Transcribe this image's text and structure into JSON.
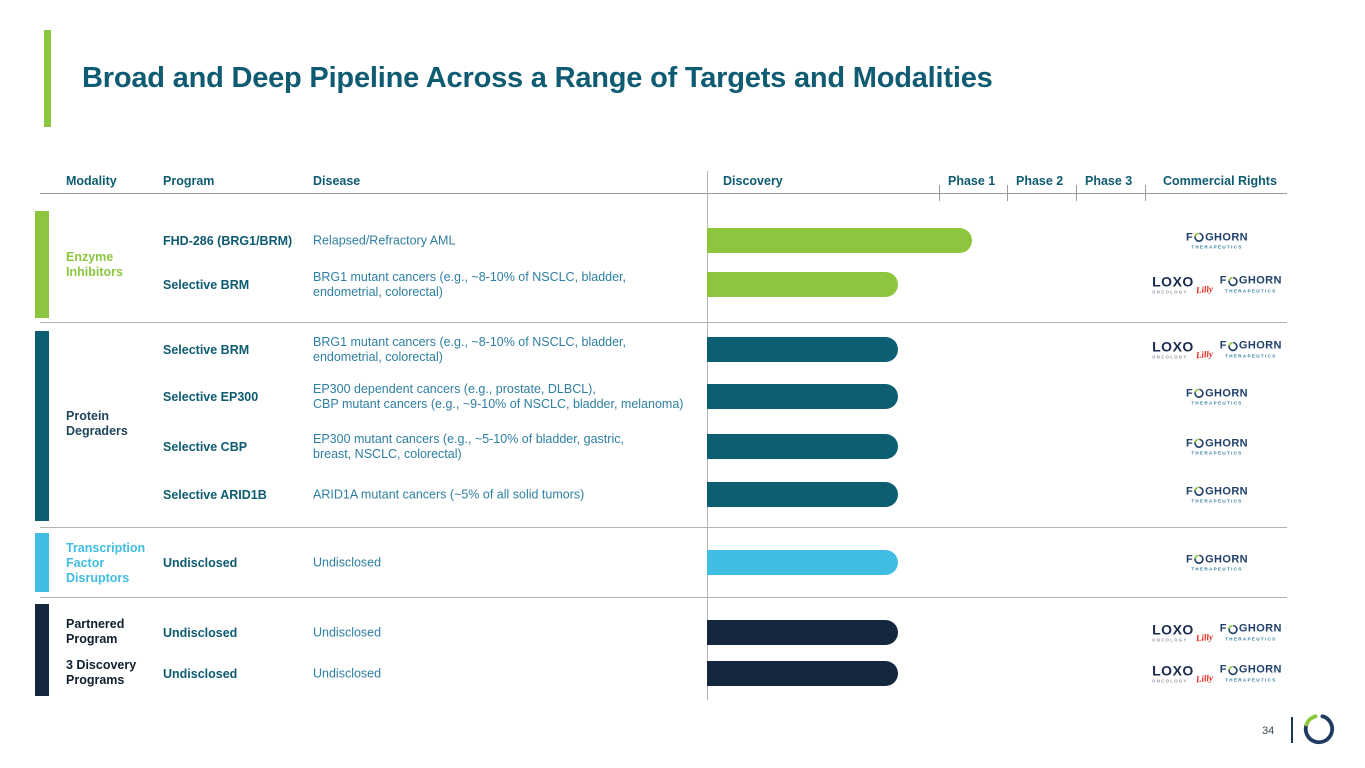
{
  "slide": {
    "title": "Broad and Deep Pipeline Across a Range of Targets and Modalities",
    "page_number": "34"
  },
  "columns": {
    "modality": "Modality",
    "program": "Program",
    "disease": "Disease",
    "discovery": "Discovery",
    "phase1": "Phase 1",
    "phase2": "Phase 2",
    "phase3": "Phase 3",
    "commercial_rights": "Commercial Rights"
  },
  "modalities": [
    {
      "label": "Enzyme Inhibitors",
      "color": "#8CC63F"
    },
    {
      "label": "Protein Degraders",
      "color": "#0C5F72"
    },
    {
      "label": "Transcription Factor Disruptors",
      "color": "#41BDE4"
    },
    {
      "label": "Partnered Program",
      "color": "#14273E"
    },
    {
      "label": "3 Discovery Programs",
      "color": "#14273E"
    }
  ],
  "rows": [
    {
      "modality": "Enzyme Inhibitors",
      "program": "FHD-286 (BRG1/BRM)",
      "disease": "Relapsed/Refractory AML",
      "stage_reached": "Phase 1 (partial)",
      "bar_color": "#8CC63F",
      "partners": "Foghorn"
    },
    {
      "modality": "Enzyme Inhibitors",
      "program": "Selective BRM",
      "disease": "BRG1 mutant cancers (e.g., ~8-10% of NSCLC, bladder,\nendometrial, colorectal)",
      "stage_reached": "Discovery",
      "bar_color": "#8CC63F",
      "partners": "Loxo Oncology + Foghorn"
    },
    {
      "modality": "Protein Degraders",
      "program": "Selective BRM",
      "disease": "BRG1 mutant cancers (e.g., ~8-10% of NSCLC, bladder,\nendometrial, colorectal)",
      "stage_reached": "Discovery",
      "bar_color": "#0C5F72",
      "partners": "Loxo Oncology + Foghorn"
    },
    {
      "modality": "Protein Degraders",
      "program": "Selective EP300",
      "disease": "EP300 dependent cancers (e.g., prostate, DLBCL),\nCBP mutant cancers (e.g., ~9-10% of NSCLC, bladder, melanoma)",
      "stage_reached": "Discovery",
      "bar_color": "#0C5F72",
      "partners": "Foghorn"
    },
    {
      "modality": "Protein Degraders",
      "program": "Selective CBP",
      "disease": "EP300 mutant cancers (e.g., ~5-10% of bladder, gastric,\nbreast, NSCLC, colorectal)",
      "stage_reached": "Discovery",
      "bar_color": "#0C5F72",
      "partners": "Foghorn"
    },
    {
      "modality": "Protein Degraders",
      "program": "Selective ARID1B",
      "disease": "ARID1A mutant cancers (~5% of all solid tumors)",
      "stage_reached": "Discovery",
      "bar_color": "#0C5F72",
      "partners": "Foghorn"
    },
    {
      "modality": "Transcription Factor Disruptors",
      "program": "Undisclosed",
      "disease": "Undisclosed",
      "stage_reached": "Discovery",
      "bar_color": "#41BDE4",
      "partners": "Foghorn"
    },
    {
      "modality": "Partnered Program",
      "program": "Undisclosed",
      "disease": "Undisclosed",
      "stage_reached": "Discovery",
      "bar_color": "#14273E",
      "partners": "Loxo Oncology + Foghorn"
    },
    {
      "modality": "3 Discovery Programs",
      "program": "Undisclosed",
      "disease": "Undisclosed",
      "stage_reached": "Discovery",
      "bar_color": "#14273E",
      "partners": "Loxo Oncology + Foghorn"
    }
  ],
  "logos": {
    "foghorn_first_letter": "F",
    "foghorn_rest": "GHORN",
    "therapeutics": "THERAPEUTICS",
    "loxo": "LOXO",
    "oncology": "ONCOLOGY",
    "lilly": "Lilly"
  }
}
